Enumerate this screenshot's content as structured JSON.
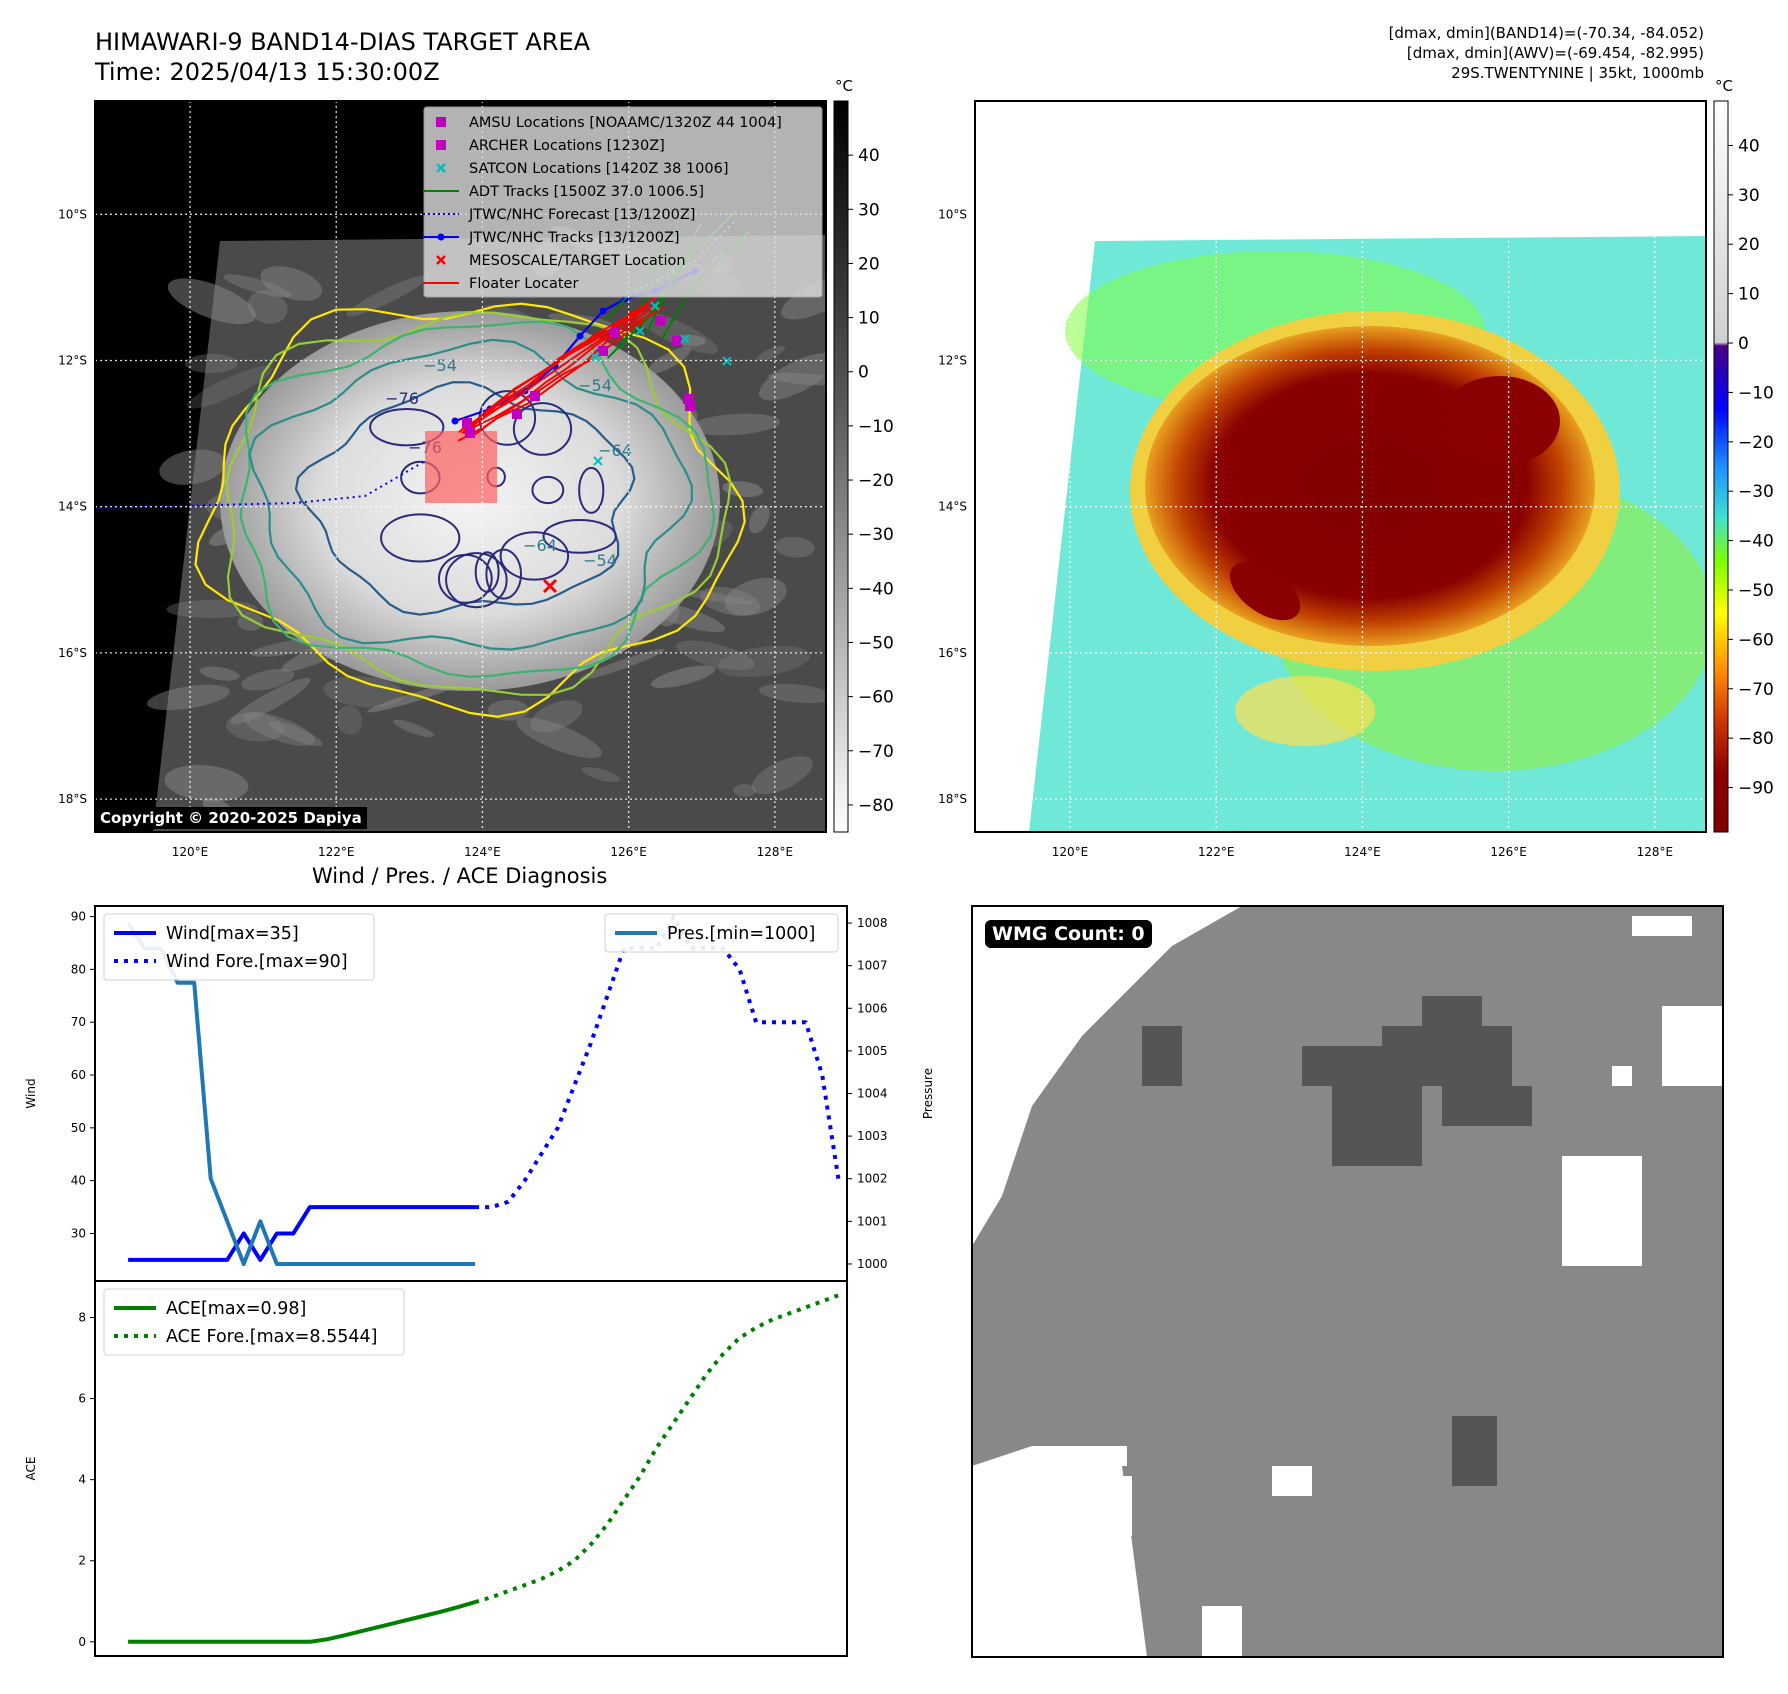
{
  "header": {
    "title_line1": "HIMAWARI-9 BAND14-DIAS TARGET AREA",
    "title_line2": "Time: 2025/04/13 15:30:00Z",
    "info_line1": "[dmax, dmin](BAND14)=(-70.34, -84.052)",
    "info_line2": "[dmax, dmin](AWV)=(-69.454, -82.995)",
    "info_line3": "29S.TWENTYNINE | 35kt, 1000mb"
  },
  "map_common": {
    "lon_ticks": [
      "120°E",
      "122°E",
      "124°E",
      "126°E",
      "128°E"
    ],
    "lat_ticks": [
      "10°S",
      "12°S",
      "14°S",
      "16°S",
      "18°S"
    ],
    "lon_values": [
      120,
      122,
      124,
      126,
      128
    ],
    "lat_values": [
      -10,
      -12,
      -14,
      -16,
      -18
    ],
    "lon_range": [
      118.7,
      128.7
    ],
    "lat_range": [
      -18.45,
      -8.45
    ]
  },
  "ir_map": {
    "copyright": "Copyright © 2020-2025 Dapiya",
    "colorbar_unit": "°C",
    "colorbar_ticks": [
      "40",
      "30",
      "20",
      "10",
      "0",
      "−10",
      "−20",
      "−30",
      "−40",
      "−50",
      "−60",
      "−70",
      "−80"
    ],
    "colorbar_range": [
      -85,
      50
    ],
    "contour_labels": [
      "−76",
      "−76",
      "−64",
      "−64",
      "−54",
      "−54",
      "−54"
    ],
    "legend": [
      {
        "label": "AMSU Locations [NOAAMC/1320Z 44 1004]",
        "color": "#c000c0",
        "marker": "square"
      },
      {
        "label": "ARCHER Locations [1230Z]",
        "color": "#c000c0",
        "marker": "square"
      },
      {
        "label": "SATCON Locations [1420Z 38 1006]",
        "color": "#00bfbf",
        "marker": "x"
      },
      {
        "label": "ADT Tracks [1500Z 37.0 1006.5]",
        "color": "#008000",
        "marker": "line"
      },
      {
        "label": "JTWC/NHC Forecast [13/1200Z]",
        "color": "#0000ff",
        "marker": "dotted"
      },
      {
        "label": "JTWC/NHC Tracks [13/1200Z]",
        "color": "#0000ff",
        "marker": "line-dot"
      },
      {
        "label": "MESOSCALE/TARGET Location",
        "color": "#ff0000",
        "marker": "x"
      },
      {
        "label": "Floater Locater",
        "color": "#ff0000",
        "marker": "line"
      }
    ]
  },
  "awv_map": {
    "colorbar_unit": "°C",
    "colorbar_ticks": [
      "40",
      "30",
      "20",
      "10",
      "0",
      "−10",
      "−20",
      "−30",
      "−40",
      "−50",
      "−60",
      "−70",
      "−80",
      "−90"
    ],
    "colorbar_range": [
      -99,
      49
    ]
  },
  "wmg": {
    "label": "WMG Count: 0"
  },
  "chart_data": [
    {
      "type": "line",
      "title": "Wind / Pres. / ACE Diagnosis",
      "ylabel": "Wind",
      "ylabel_right": "Pressure",
      "ylim": [
        21,
        92
      ],
      "ylim_right": [
        999.6,
        1008.4
      ],
      "y_ticks": [
        30,
        40,
        50,
        60,
        70,
        80,
        90
      ],
      "y_ticks_right": [
        1000,
        1001,
        1002,
        1003,
        1004,
        1005,
        1006,
        1007,
        1008
      ],
      "x": [
        0,
        1,
        2,
        3,
        4,
        5,
        6,
        7,
        8,
        9,
        10,
        11,
        12,
        13,
        14,
        15,
        16,
        17,
        18,
        19,
        20,
        21,
        22,
        23,
        24,
        25,
        26,
        27,
        28,
        29,
        30,
        31,
        32,
        33,
        34,
        35,
        36,
        37,
        38,
        39,
        40,
        41,
        42,
        43
      ],
      "xlim": [
        -2,
        43.5
      ],
      "series": [
        {
          "name": "Wind[max=35]",
          "axis": "left",
          "style": "solid",
          "color": "#0000ff",
          "values": [
            25,
            25,
            25,
            25,
            25,
            25,
            25,
            30,
            25,
            30,
            30,
            35,
            35,
            35,
            35,
            35,
            35,
            35,
            35,
            35,
            35,
            35,
            null,
            null,
            null,
            null,
            null,
            null,
            null,
            null,
            null,
            null,
            null,
            null,
            null,
            null,
            null,
            null,
            null,
            null,
            null,
            null,
            null,
            null
          ]
        },
        {
          "name": "Wind Fore.[max=90]",
          "axis": "left",
          "style": "dotted",
          "color": "#0000ff",
          "values": [
            null,
            null,
            null,
            null,
            null,
            null,
            null,
            null,
            null,
            null,
            null,
            null,
            null,
            null,
            null,
            null,
            null,
            null,
            null,
            null,
            null,
            35,
            35,
            36,
            40,
            45,
            50,
            58,
            66,
            75,
            84,
            84,
            84,
            90,
            84,
            84,
            84,
            80,
            70,
            70,
            70,
            70,
            60,
            40
          ]
        },
        {
          "name": "Pres.[min=1000]",
          "axis": "right",
          "style": "solid",
          "color": "#1f77b4",
          "values": [
            1008,
            1007.4,
            1007.4,
            1006.6,
            1006.6,
            1002,
            1001,
            1000,
            1001,
            1000,
            1000,
            1000,
            1000,
            1000,
            1000,
            1000,
            1000,
            1000,
            1000,
            1000,
            1000,
            1000,
            null,
            null,
            null,
            null,
            null,
            null,
            null,
            null,
            null,
            null,
            null,
            null,
            null,
            null,
            null,
            null,
            null,
            null,
            null,
            null,
            null,
            null
          ]
        }
      ]
    },
    {
      "type": "line",
      "ylabel": "ACE",
      "ylim": [
        -0.35,
        8.9
      ],
      "y_ticks": [
        0,
        2,
        4,
        6,
        8
      ],
      "x": [
        0,
        1,
        2,
        3,
        4,
        5,
        6,
        7,
        8,
        9,
        10,
        11,
        12,
        13,
        14,
        15,
        16,
        17,
        18,
        19,
        20,
        21,
        22,
        23,
        24,
        25,
        26,
        27,
        28,
        29,
        30,
        31,
        32,
        33,
        34,
        35,
        36,
        37,
        38,
        39,
        40,
        41,
        42,
        43
      ],
      "xlim": [
        -2,
        43.5
      ],
      "series": [
        {
          "name": "ACE[max=0.98]",
          "style": "solid",
          "color": "#008000",
          "values": [
            0,
            0,
            0,
            0,
            0,
            0,
            0,
            0,
            0,
            0,
            0,
            0,
            0.06,
            0.15,
            0.25,
            0.35,
            0.45,
            0.55,
            0.65,
            0.75,
            0.86,
            0.98,
            null,
            null,
            null,
            null,
            null,
            null,
            null,
            null,
            null,
            null,
            null,
            null,
            null,
            null,
            null,
            null,
            null,
            null,
            null,
            null,
            null,
            null
          ]
        },
        {
          "name": "ACE Fore.[max=8.5544]",
          "style": "dotted",
          "color": "#008000",
          "values": [
            null,
            null,
            null,
            null,
            null,
            null,
            null,
            null,
            null,
            null,
            null,
            null,
            null,
            null,
            null,
            null,
            null,
            null,
            null,
            null,
            null,
            0.98,
            1.1,
            1.25,
            1.4,
            1.55,
            1.75,
            2.0,
            2.4,
            2.9,
            3.5,
            4.1,
            4.8,
            5.4,
            6.0,
            6.6,
            7.1,
            7.5,
            7.75,
            7.95,
            8.1,
            8.25,
            8.4,
            8.55
          ]
        }
      ]
    }
  ]
}
